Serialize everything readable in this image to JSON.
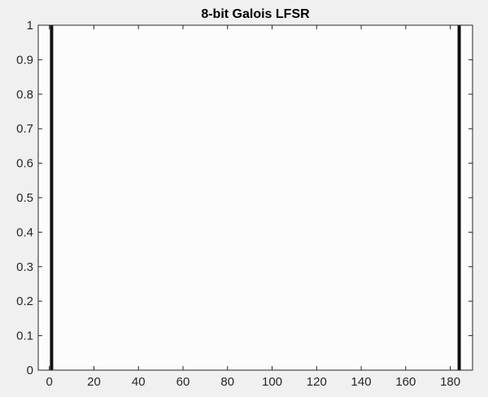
{
  "chart_data": {
    "type": "bar",
    "title": "8-bit Galois LFSR",
    "xlabel": "",
    "ylabel": "",
    "xlim": [
      -5,
      190
    ],
    "ylim": [
      0,
      1
    ],
    "x": [
      1,
      184
    ],
    "values": [
      1,
      1
    ],
    "xticks": [
      0,
      20,
      40,
      60,
      80,
      100,
      120,
      140,
      160,
      180
    ],
    "yticks": [
      0,
      0.1,
      0.2,
      0.3,
      0.4,
      0.5,
      0.6,
      0.7,
      0.8,
      0.9,
      1
    ],
    "xtick_labels": [
      "0",
      "20",
      "40",
      "60",
      "80",
      "100",
      "120",
      "140",
      "160",
      "180"
    ],
    "ytick_labels": [
      "0",
      "0.1",
      "0.2",
      "0.3",
      "0.4",
      "0.5",
      "0.6",
      "0.7",
      "0.8",
      "0.9",
      "1"
    ],
    "grid": false,
    "bar_color": "#111111",
    "axes_background": "#fdfcfd",
    "figure_background": "#f0f0f0"
  }
}
